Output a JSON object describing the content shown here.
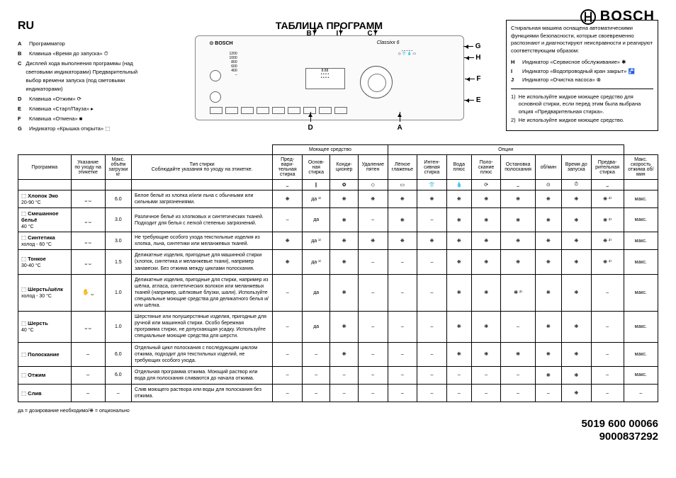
{
  "brand": "BOSCH",
  "lang_label": "RU",
  "title": "ТАБЛИЦА ПРОГРАММ",
  "legend": [
    {
      "k": "A",
      "v": "Программатор"
    },
    {
      "k": "B",
      "v": "Клавиша «Время до запуска» ⏱"
    },
    {
      "k": "C",
      "v": "Дисплей хода выполнения программы (над световыми индикаторами) Предварительный выбор времени запуска (под световыми индикаторами)"
    },
    {
      "k": "D",
      "v": "Клавиша «Отжим» ⟳"
    },
    {
      "k": "E",
      "v": "Клавиша «Старт/Пауза» ▸"
    },
    {
      "k": "F",
      "v": "Клавиша «Отмена» ■"
    },
    {
      "k": "G",
      "v": "Индикатор «Крышка открыта» ⬚"
    }
  ],
  "right_box": {
    "intro": "Стиральная машина оснащена автоматическими функциями безопасности, которые своевременно распознают и диагностируют неисправности и реагируют соответствующим образом:",
    "items": [
      {
        "k": "H",
        "v": "Индикатор «Сервисное обслуживание» ✱"
      },
      {
        "k": "I",
        "v": "Индикатор «Водопроводный кран закрыт» 🚰"
      },
      {
        "k": "J",
        "v": "Индикатор «Очистка насоса» ⊗"
      }
    ],
    "notes": [
      "Не используйте жидкое моющее средство для основной стирки, если перед этим была выбрана опция «Предварительная стирка».",
      "Не используйте жидкое моющее средство."
    ]
  },
  "panel": {
    "model": "Classixx 6",
    "callouts": [
      "A",
      "B",
      "C",
      "D",
      "E",
      "F",
      "G",
      "H",
      "I"
    ]
  },
  "table": {
    "group_headers": [
      "",
      "",
      "",
      "",
      "Моющее средство",
      "Опции",
      ""
    ],
    "group_spans": [
      1,
      1,
      1,
      1,
      4,
      8,
      1
    ],
    "cols": [
      "Программа",
      "Указание по уходу на этикетке",
      "Макс. объём загрузки кг",
      "Тип стирки\nСоблюдайте указания по уходу на этикетке.",
      "Пред­вари­тельная стирка",
      "Основ­ная стирка",
      "Конди­ционер",
      "Удаление пятен",
      "Лёгкое глаженье",
      "Интен­сивная стирка",
      "Вода плюс",
      "Поло­скание плюс",
      "Остановка полоскания",
      "об/мин",
      "Время до запуска",
      "Предва­рительная стирка",
      "Макс. скорость отжима об/мин"
    ],
    "icon_row": [
      "",
      "",
      "",
      "",
      "⎵",
      "∥",
      "✿",
      "◇",
      "▭",
      "👕",
      "💧",
      "⟳",
      "⎵",
      "⊙",
      "⏱",
      "⎵",
      ""
    ],
    "rows": [
      {
        "prog_b": "Хлопок Эко",
        "prog_t": "20-90 °C",
        "care": "⎵ ⎵",
        "load": "6.0",
        "desc": "Белое бельё из хлопка и/или льна с обычными или сильными загрязнениями.",
        "cells": [
          "❋",
          "да ¹⁾",
          "❋",
          "❋",
          "❋",
          "❋",
          "❋",
          "❋",
          "❋",
          "❋",
          "❋",
          "❋ ²⁾",
          "макс."
        ]
      },
      {
        "prog_b": "Смешанное бельё",
        "prog_t": "40 °C",
        "care": "⎵ ⎵",
        "load": "3.0",
        "desc": "Различное бельё из хлопковых и синтетических тканей. Подходит для белья с легкой степенью загрязнений.",
        "cells": [
          "–",
          "да",
          "❋",
          "–",
          "❋",
          "–",
          "❋",
          "❋",
          "❋",
          "❋",
          "❋",
          "❋ ²⁾",
          "макс."
        ]
      },
      {
        "prog_b": "Синтетика",
        "prog_t": "холод - 60 °C",
        "care": "⎵ ⎵",
        "load": "3.0",
        "desc": "Не требующие особого ухода текстильные изделия из хлопка, льна, синтетики или меланжевых тканей.",
        "cells": [
          "❋",
          "да ¹⁾",
          "❋",
          "❋",
          "❋",
          "❋",
          "❋",
          "❋",
          "❋",
          "❋",
          "❋",
          "❋ ²⁾",
          "макс."
        ]
      },
      {
        "prog_b": "Тонкое",
        "prog_t": "30-40 °C",
        "care": "⎵ ⎵",
        "load": "1.5",
        "desc": "Деликатные изделия, пригодные для машинной стирки (хлопок, синтетика и меланжевые ткани), например занавески. Без отжима между циклами полоскания.",
        "cells": [
          "❋",
          "да ¹⁾",
          "❋",
          "–",
          "–",
          "–",
          "❋",
          "❋",
          "❋",
          "❋",
          "❋",
          "❋ ²⁾",
          "макс."
        ]
      },
      {
        "prog_b": "Шерсть/шёлк",
        "prog_t": "холод - 30 °C",
        "care": "✋ ⎵",
        "load": "1.0",
        "desc": "Деликатные изделия, пригодные для стирки, например из шёлка, атласа, синтетических волокон или меланжевых тканей (например, шёлковые блузки, шали). Используйте специальные моющие средства для деликатного белья и/или шёлка.",
        "cells": [
          "–",
          "да",
          "❋",
          "–",
          "–",
          "–",
          "❋",
          "❋",
          "❋ ²⁾",
          "❋",
          "❋",
          "–",
          "макс."
        ]
      },
      {
        "prog_b": "Шерсть",
        "prog_t": "40 °C",
        "care": "⎵ ⎵",
        "load": "1.0",
        "desc": "Шерстяные или полушерстяные изделия, пригодные для ручной или машинной стирки. Особо бережная программа стирки, не допускающая усадку. Используйте специальные моющие средства для шерсти.",
        "cells": [
          "–",
          "да",
          "❋",
          "–",
          "–",
          "–",
          "❋",
          "❋",
          "–",
          "❋",
          "❋",
          "–",
          "макс."
        ]
      },
      {
        "prog_b": "Полоскание",
        "prog_t": "",
        "care": "–",
        "load": "6.0",
        "desc": "Отдельный цикл полоскания с последующим циклом отжима, подходит для текстильных изделий, не требующих особого ухода.",
        "cells": [
          "–",
          "–",
          "❋",
          "–",
          "–",
          "–",
          "❋",
          "❋",
          "❋",
          "❋",
          "❋",
          "–",
          "макс."
        ]
      },
      {
        "prog_b": "Отжим",
        "prog_t": "",
        "care": "–",
        "load": "6.0",
        "desc": "Отдельная программа отжима. Моющий раствор или вода для полоскания сливаются до начала отжима.",
        "cells": [
          "–",
          "–",
          "–",
          "–",
          "–",
          "–",
          "–",
          "–",
          "–",
          "❋",
          "❋",
          "–",
          "макс."
        ]
      },
      {
        "prog_b": "Слив",
        "prog_t": "",
        "care": "–",
        "load": "–",
        "desc": "Слив моющего раствора или воды для полоскания без отжима.",
        "cells": [
          "–",
          "–",
          "–",
          "–",
          "–",
          "–",
          "–",
          "–",
          "–",
          "–",
          "❋",
          "–",
          "–"
        ]
      }
    ]
  },
  "footnote": "да = дозирование необходимо/❋ = опционально",
  "codes": [
    "5019 600 00066",
    "9000837292"
  ]
}
